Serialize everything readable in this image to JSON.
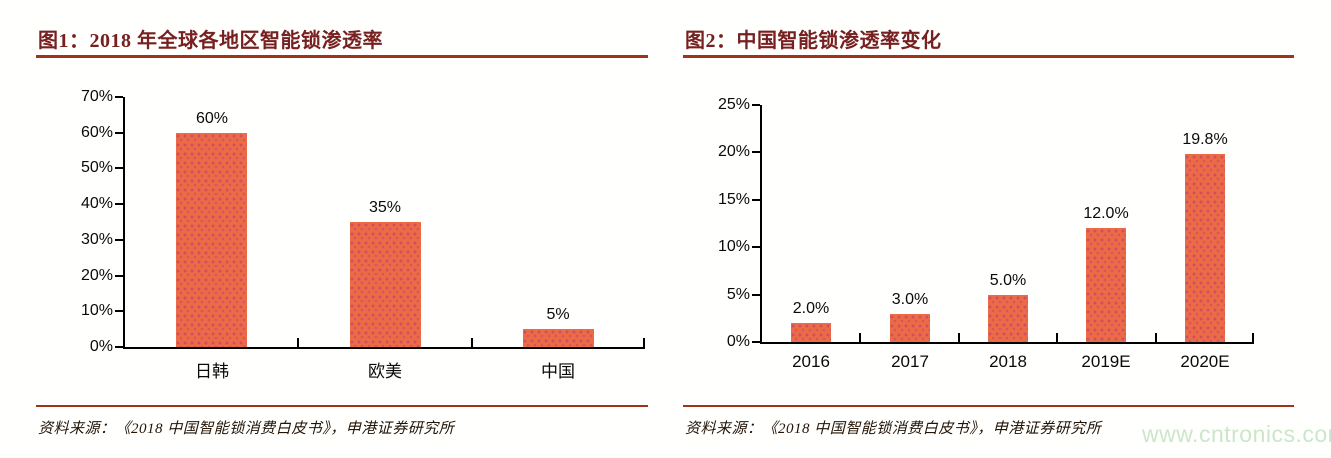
{
  "watermark": {
    "text": "www.cntronics.com",
    "color": "#cbe6ca"
  },
  "source_note": {
    "figure1": "资料来源：《2018 中国智能锁消费白皮书》，申港证券研究所",
    "figure2": "资料来源：《2018 中国智能锁消费白皮书》，申港证券研究所"
  },
  "colors": {
    "bar_fill": "#ec6b45",
    "bar_dot_texture": "#cc4f66",
    "title_text": "#772020",
    "rule_line": "#a03418",
    "axis_line": "#000000",
    "label_text": "#0a0a0a",
    "source_text": "#231407",
    "watermark_text": "#cbe6ca",
    "background": "#fffffe"
  },
  "chart_data": [
    {
      "type": "bar",
      "title": "图1：2018 年全球各地区智能锁渗透率",
      "categories": [
        "日韩",
        "欧美",
        "中国"
      ],
      "values": [
        60,
        35,
        5
      ],
      "data_labels": [
        "60%",
        "35%",
        "5%"
      ],
      "xlabel": "",
      "ylabel": "",
      "ylim": [
        0,
        70
      ],
      "ytick_step": 10,
      "ytick_labels": [
        "0%",
        "10%",
        "20%",
        "30%",
        "40%",
        "50%",
        "60%",
        "70%"
      ],
      "grid": false,
      "legend": "none",
      "bar_color": "#ec6b45"
    },
    {
      "type": "bar",
      "title": "图2：中国智能锁渗透率变化",
      "categories": [
        "2016",
        "2017",
        "2018",
        "2019E",
        "2020E"
      ],
      "values": [
        2.0,
        3.0,
        5.0,
        12.0,
        19.8
      ],
      "data_labels": [
        "2.0%",
        "3.0%",
        "5.0%",
        "12.0%",
        "19.8%"
      ],
      "xlabel": "",
      "ylabel": "",
      "ylim": [
        0,
        25
      ],
      "ytick_step": 5,
      "ytick_labels": [
        "0%",
        "5%",
        "10%",
        "15%",
        "20%",
        "25%"
      ],
      "grid": false,
      "legend": "none",
      "bar_color": "#ec6b45"
    }
  ]
}
